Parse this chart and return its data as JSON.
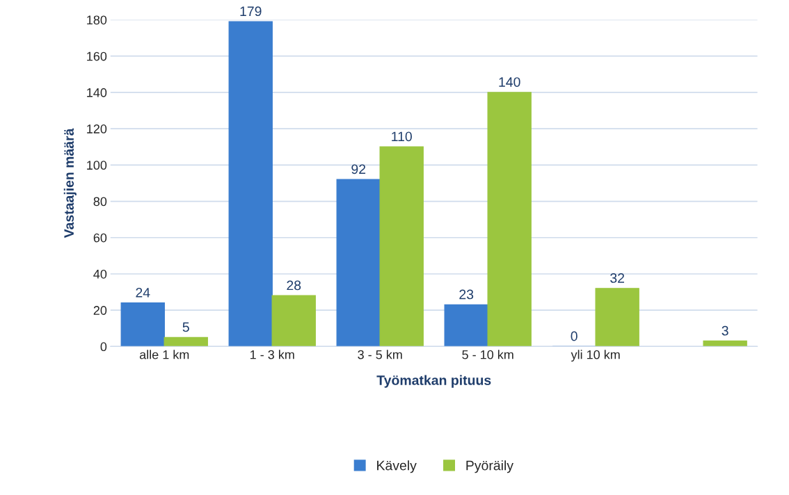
{
  "chart_data": {
    "type": "bar",
    "xlabel": "Työmatkan pituus",
    "ylabel": "Vastaajien määrä",
    "categories": [
      "alle 1 km",
      "1 - 3 km",
      "3 - 5 km",
      "5 - 10 km",
      "yli 10 km",
      null
    ],
    "series": [
      {
        "name": "Kävely",
        "color": "#3a7dcf",
        "values": [
          24,
          179,
          92,
          23,
          0,
          null
        ]
      },
      {
        "name": "Pyöräily",
        "color": "#9bc63f",
        "values": [
          5,
          28,
          110,
          140,
          32,
          3
        ]
      }
    ],
    "ylim": [
      0,
      180
    ],
    "yticks": [
      0,
      20,
      40,
      60,
      80,
      100,
      120,
      140,
      160,
      180
    ],
    "grid": "y",
    "legend": "bottom",
    "data_labels": true
  }
}
